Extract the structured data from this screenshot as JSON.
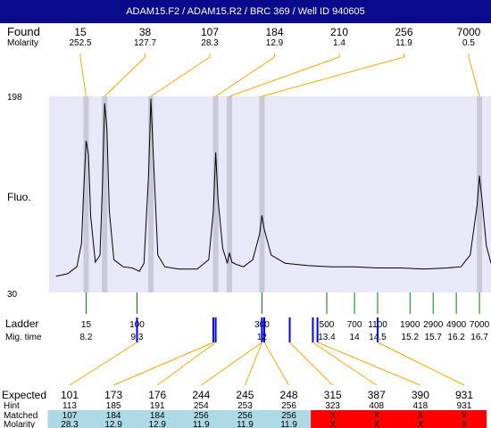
{
  "header": {
    "title": "ADAM15.F2 / ADAM15.R2 / BRC 369 / Well ID 940605"
  },
  "labels": {
    "found": "Found",
    "molarity": "Molarity",
    "fluo": "Fluo.",
    "ladder": "Ladder",
    "mig_time": "Mig. time",
    "expected": "Expected",
    "hint": "Hint",
    "matched": "Matched",
    "molarity_bottom": "Molarity"
  },
  "colors": {
    "title_bg": "#0a0a8c",
    "plot_bg": "#e8e8f8",
    "peak_marker": "#c8c8d8",
    "leader_line": "#ffa500",
    "ladder_tick": "#008000",
    "blue_mark": "#0000ff",
    "matched_bg": "#add8e6",
    "unmatched_bg": "#ff0000"
  },
  "chart_data": {
    "type": "line",
    "title": "ADAM15.F2 / ADAM15.R2 / BRC 369 / Well ID 940605",
    "ylabel": "Fluo.",
    "ylim": [
      30,
      198
    ],
    "yticks": [
      "198",
      "30"
    ],
    "xlim": [
      7.4,
      16.95
    ],
    "found": {
      "sizes": [
        "15",
        "38",
        "107",
        "184",
        "210",
        "256",
        "7000"
      ],
      "molarity": [
        "252.5",
        "127.7",
        "28.3",
        "12.9",
        "1.4",
        "11.9",
        "0.5"
      ],
      "mig_times": [
        8.2,
        8.6,
        9.6,
        11.0,
        11.3,
        12.0,
        16.7
      ]
    },
    "ladder": {
      "sizes": [
        "15",
        "100",
        "300",
        "500",
        "700",
        "1100",
        "1900",
        "2900",
        "4900",
        "7000"
      ],
      "mig_time_labels": [
        "8.2",
        "9.3",
        "12",
        "13.4",
        "14",
        "14.5",
        "15.2",
        "15.7",
        "16.2",
        "16.7"
      ],
      "mig_times": [
        8.2,
        9.3,
        12.0,
        13.4,
        14.0,
        14.5,
        15.2,
        15.7,
        16.2,
        16.7
      ]
    },
    "electropherogram": {
      "x": [
        7.55,
        7.8,
        8.0,
        8.1,
        8.15,
        8.2,
        8.25,
        8.3,
        8.4,
        8.5,
        8.55,
        8.6,
        8.65,
        8.7,
        8.8,
        9.0,
        9.2,
        9.35,
        9.45,
        9.55,
        9.6,
        9.65,
        9.75,
        9.9,
        10.2,
        10.6,
        10.85,
        10.95,
        11.0,
        11.05,
        11.15,
        11.25,
        11.3,
        11.35,
        11.45,
        11.6,
        11.8,
        11.95,
        12.0,
        12.05,
        12.2,
        12.5,
        13.0,
        13.5,
        14.0,
        14.5,
        15.0,
        15.5,
        16.0,
        16.3,
        16.5,
        16.65,
        16.7,
        16.75,
        16.85,
        16.95
      ],
      "y": [
        44,
        46,
        52,
        72,
        120,
        160,
        148,
        95,
        56,
        62,
        118,
        192,
        170,
        100,
        58,
        52,
        51,
        48,
        55,
        130,
        196,
        150,
        62,
        52,
        50,
        50,
        58,
        100,
        150,
        110,
        68,
        55,
        64,
        56,
        54,
        52,
        58,
        80,
        96,
        84,
        62,
        55,
        53,
        52,
        52,
        51,
        51,
        50,
        51,
        52,
        62,
        105,
        130,
        112,
        70,
        55
      ]
    },
    "expected_table": {
      "expected": [
        "101",
        "173",
        "176",
        "244",
        "245",
        "248",
        "315",
        "387",
        "390",
        "931"
      ],
      "hint": [
        "113",
        "185",
        "191",
        "254",
        "253",
        "256",
        "323",
        "408",
        "418",
        "931"
      ],
      "matched": [
        "107",
        "184",
        "184",
        "256",
        "256",
        "256",
        "X",
        "X",
        "X",
        "X"
      ],
      "molarity": [
        "28.3",
        "12.9",
        "12.9",
        "11.9",
        "11.9",
        "11.9",
        "X",
        "X",
        "X",
        "X"
      ],
      "matched_flags": [
        true,
        true,
        true,
        true,
        true,
        true,
        false,
        false,
        false,
        false
      ],
      "blue_mark_times": [
        9.3,
        10.95,
        11.0,
        12.0,
        12.0,
        12.05,
        12.6,
        13.1,
        13.2,
        14.5
      ]
    }
  }
}
